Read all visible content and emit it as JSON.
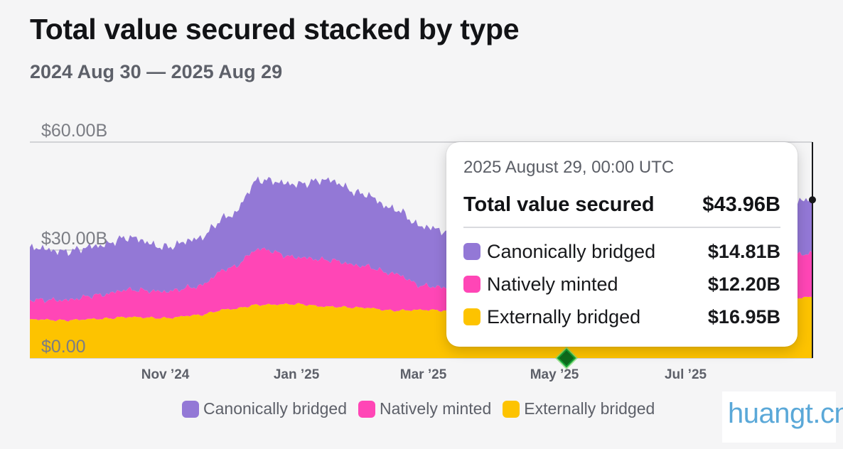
{
  "header": {
    "title": "Total value secured stacked by type",
    "subtitle": "2024 Aug 30 — 2025 Aug 29"
  },
  "chart_data": {
    "type": "area",
    "stacked": true,
    "title": "Total value secured stacked by type",
    "subtitle": "2024 Aug 30 — 2025 Aug 29",
    "xlabel": "",
    "ylabel": "",
    "ylim": [
      0,
      60
    ],
    "y_unit": "B USD",
    "y_ticks": [
      "$0.00",
      "$30.00B",
      "$60.00B"
    ],
    "x_tick_labels": [
      "Nov ’24",
      "Jan ’25",
      "Mar ’25",
      "May ’25",
      "Jul ’25"
    ],
    "grid": true,
    "legend_position": "bottom",
    "colors": {
      "Canonically bridged": "#9378d6",
      "Natively minted": "#ff46b6",
      "Externally bridged": "#fdc300"
    },
    "x": [
      "2024-08-30",
      "2024-09-15",
      "2024-10-01",
      "2024-10-15",
      "2024-11-01",
      "2024-11-15",
      "2024-12-01",
      "2024-12-15",
      "2025-01-01",
      "2025-01-15",
      "2025-02-01",
      "2025-02-15",
      "2025-03-01",
      "2025-03-15",
      "2025-04-01",
      "2025-04-15",
      "2025-05-01",
      "2025-05-15",
      "2025-06-01",
      "2025-06-15",
      "2025-07-01",
      "2025-07-15",
      "2025-08-01",
      "2025-08-15",
      "2025-08-29"
    ],
    "series": [
      {
        "name": "Externally bridged",
        "values": [
          10.8,
          10.5,
          10.9,
          11.4,
          11.1,
          11.9,
          13.6,
          14.8,
          15.0,
          14.3,
          14.0,
          13.2,
          13.4,
          13.1,
          12.7,
          12.2,
          12.1,
          12.4,
          12.9,
          13.4,
          14.0,
          14.8,
          15.6,
          16.2,
          16.95
        ]
      },
      {
        "name": "Natively minted",
        "values": [
          5.4,
          5.6,
          6.6,
          7.6,
          7.4,
          7.9,
          11.4,
          15.5,
          13.0,
          13.0,
          11.6,
          10.3,
          6.7,
          6.3,
          5.6,
          5.4,
          5.5,
          6.0,
          6.8,
          8.0,
          9.2,
          10.4,
          11.5,
          12.0,
          12.2
        ]
      },
      {
        "name": "Canonically bridged",
        "values": [
          14.6,
          13.5,
          13.7,
          14.5,
          12.3,
          13.2,
          14.5,
          19.2,
          20.3,
          22.2,
          20.0,
          18.0,
          16.4,
          15.4,
          15.3,
          14.8,
          14.8,
          15.2,
          15.5,
          15.9,
          16.3,
          16.0,
          15.5,
          15.2,
          14.81
        ]
      }
    ],
    "tooltip": {
      "date": "2025 August 29, 00:00 UTC",
      "total_label": "Total value secured",
      "total_value": "$43.96B",
      "items": [
        {
          "label": "Canonically bridged",
          "value": "$14.81B",
          "color": "#9378d6"
        },
        {
          "label": "Natively minted",
          "value": "$12.20B",
          "color": "#ff46b6"
        },
        {
          "label": "Externally bridged",
          "value": "$16.95B",
          "color": "#fdc300"
        }
      ]
    }
  },
  "legend": {
    "items": [
      {
        "label": "Canonically bridged",
        "color": "#9378d6"
      },
      {
        "label": "Natively minted",
        "color": "#ff46b6"
      },
      {
        "label": "Externally bridged",
        "color": "#fdc300"
      }
    ]
  },
  "watermark": {
    "text": "huangt.cn"
  }
}
